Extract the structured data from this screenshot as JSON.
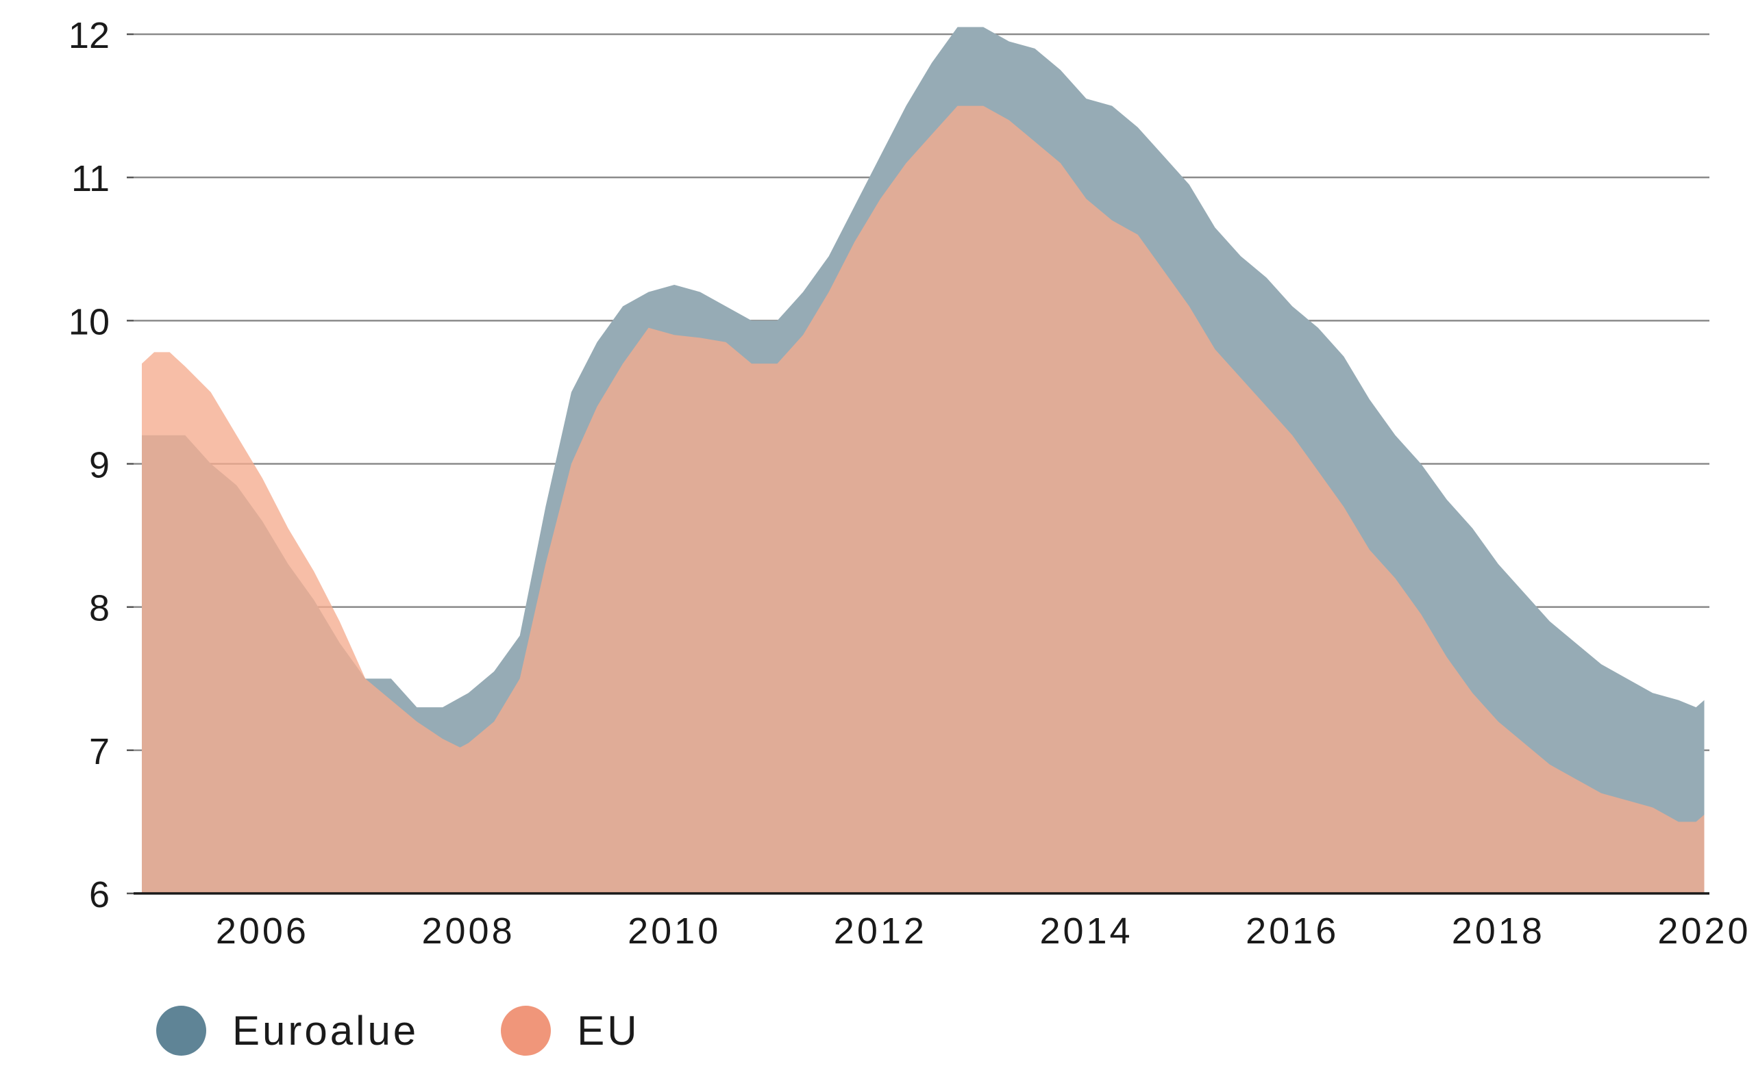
{
  "chart_data": {
    "type": "area",
    "title": "",
    "xlabel": "",
    "ylabel": "",
    "ylim": [
      6,
      12
    ],
    "xlim": [
      2004.75,
      2020.05
    ],
    "yticks": [
      "6",
      "7",
      "8",
      "9",
      "10",
      "11",
      "12"
    ],
    "xticks": [
      {
        "year": 2006,
        "label": "2006"
      },
      {
        "year": 2008,
        "label": "2008"
      },
      {
        "year": 2010,
        "label": "2010"
      },
      {
        "year": 2012,
        "label": "2012"
      },
      {
        "year": 2014,
        "label": "2014"
      },
      {
        "year": 2016,
        "label": "2016"
      },
      {
        "year": 2018,
        "label": "2018"
      },
      {
        "year": 2020,
        "label": "2020"
      }
    ],
    "grid": true,
    "legend_position": "bottom-left",
    "series": [
      {
        "name": "Euroalue",
        "color": "#96abb5",
        "legend_color": "#5f8496",
        "points": [
          [
            2004.83,
            9.2
          ],
          [
            2005.0,
            9.2
          ],
          [
            2005.25,
            9.2
          ],
          [
            2005.5,
            9.0
          ],
          [
            2005.75,
            8.85
          ],
          [
            2006.0,
            8.6
          ],
          [
            2006.25,
            8.3
          ],
          [
            2006.5,
            8.05
          ],
          [
            2006.75,
            7.75
          ],
          [
            2007.0,
            7.5
          ],
          [
            2007.25,
            7.5
          ],
          [
            2007.5,
            7.3
          ],
          [
            2007.75,
            7.3
          ],
          [
            2008.0,
            7.4
          ],
          [
            2008.25,
            7.55
          ],
          [
            2008.5,
            7.8
          ],
          [
            2008.75,
            8.7
          ],
          [
            2009.0,
            9.5
          ],
          [
            2009.25,
            9.85
          ],
          [
            2009.5,
            10.1
          ],
          [
            2009.75,
            10.2
          ],
          [
            2010.0,
            10.25
          ],
          [
            2010.25,
            10.2
          ],
          [
            2010.5,
            10.1
          ],
          [
            2010.75,
            10.0
          ],
          [
            2011.0,
            10.0
          ],
          [
            2011.25,
            10.2
          ],
          [
            2011.5,
            10.45
          ],
          [
            2011.75,
            10.8
          ],
          [
            2012.0,
            11.15
          ],
          [
            2012.25,
            11.5
          ],
          [
            2012.5,
            11.8
          ],
          [
            2012.75,
            12.05
          ],
          [
            2013.0,
            12.05
          ],
          [
            2013.25,
            11.95
          ],
          [
            2013.5,
            11.9
          ],
          [
            2013.75,
            11.75
          ],
          [
            2014.0,
            11.55
          ],
          [
            2014.25,
            11.5
          ],
          [
            2014.5,
            11.35
          ],
          [
            2014.75,
            11.15
          ],
          [
            2015.0,
            10.95
          ],
          [
            2015.25,
            10.65
          ],
          [
            2015.5,
            10.45
          ],
          [
            2015.75,
            10.3
          ],
          [
            2016.0,
            10.1
          ],
          [
            2016.25,
            9.95
          ],
          [
            2016.5,
            9.75
          ],
          [
            2016.75,
            9.45
          ],
          [
            2017.0,
            9.2
          ],
          [
            2017.25,
            9.0
          ],
          [
            2017.5,
            8.75
          ],
          [
            2017.75,
            8.55
          ],
          [
            2018.0,
            8.3
          ],
          [
            2018.25,
            8.1
          ],
          [
            2018.5,
            7.9
          ],
          [
            2018.75,
            7.75
          ],
          [
            2019.0,
            7.6
          ],
          [
            2019.25,
            7.5
          ],
          [
            2019.5,
            7.4
          ],
          [
            2019.75,
            7.35
          ],
          [
            2019.92,
            7.3
          ],
          [
            2020.0,
            7.35
          ]
        ]
      },
      {
        "name": "EU",
        "color": "#f5ac8e",
        "legend_color": "#f0967a",
        "points": [
          [
            2004.83,
            9.7
          ],
          [
            2004.95,
            9.78
          ],
          [
            2005.1,
            9.78
          ],
          [
            2005.25,
            9.68
          ],
          [
            2005.5,
            9.5
          ],
          [
            2005.75,
            9.2
          ],
          [
            2006.0,
            8.9
          ],
          [
            2006.25,
            8.55
          ],
          [
            2006.5,
            8.25
          ],
          [
            2006.75,
            7.9
          ],
          [
            2007.0,
            7.5
          ],
          [
            2007.25,
            7.35
          ],
          [
            2007.5,
            7.2
          ],
          [
            2007.75,
            7.08
          ],
          [
            2007.92,
            7.02
          ],
          [
            2008.0,
            7.05
          ],
          [
            2008.25,
            7.2
          ],
          [
            2008.5,
            7.5
          ],
          [
            2008.75,
            8.3
          ],
          [
            2009.0,
            9.0
          ],
          [
            2009.25,
            9.4
          ],
          [
            2009.5,
            9.7
          ],
          [
            2009.75,
            9.95
          ],
          [
            2010.0,
            9.9
          ],
          [
            2010.25,
            9.88
          ],
          [
            2010.5,
            9.85
          ],
          [
            2010.75,
            9.7
          ],
          [
            2011.0,
            9.7
          ],
          [
            2011.25,
            9.9
          ],
          [
            2011.5,
            10.2
          ],
          [
            2011.75,
            10.55
          ],
          [
            2012.0,
            10.85
          ],
          [
            2012.25,
            11.1
          ],
          [
            2012.5,
            11.3
          ],
          [
            2012.75,
            11.5
          ],
          [
            2013.0,
            11.5
          ],
          [
            2013.25,
            11.4
          ],
          [
            2013.5,
            11.25
          ],
          [
            2013.75,
            11.1
          ],
          [
            2014.0,
            10.85
          ],
          [
            2014.25,
            10.7
          ],
          [
            2014.5,
            10.6
          ],
          [
            2014.75,
            10.35
          ],
          [
            2015.0,
            10.1
          ],
          [
            2015.25,
            9.8
          ],
          [
            2015.5,
            9.6
          ],
          [
            2015.75,
            9.4
          ],
          [
            2016.0,
            9.2
          ],
          [
            2016.25,
            8.95
          ],
          [
            2016.5,
            8.7
          ],
          [
            2016.75,
            8.4
          ],
          [
            2017.0,
            8.2
          ],
          [
            2017.25,
            7.95
          ],
          [
            2017.5,
            7.65
          ],
          [
            2017.75,
            7.4
          ],
          [
            2018.0,
            7.2
          ],
          [
            2018.25,
            7.05
          ],
          [
            2018.5,
            6.9
          ],
          [
            2018.75,
            6.8
          ],
          [
            2019.0,
            6.7
          ],
          [
            2019.25,
            6.65
          ],
          [
            2019.5,
            6.6
          ],
          [
            2019.75,
            6.5
          ],
          [
            2019.92,
            6.5
          ],
          [
            2020.0,
            6.55
          ]
        ]
      }
    ]
  },
  "legend": {
    "items": [
      {
        "label": "Euroalue",
        "color": "#5f8496"
      },
      {
        "label": "EU",
        "color": "#f0967a"
      }
    ]
  }
}
